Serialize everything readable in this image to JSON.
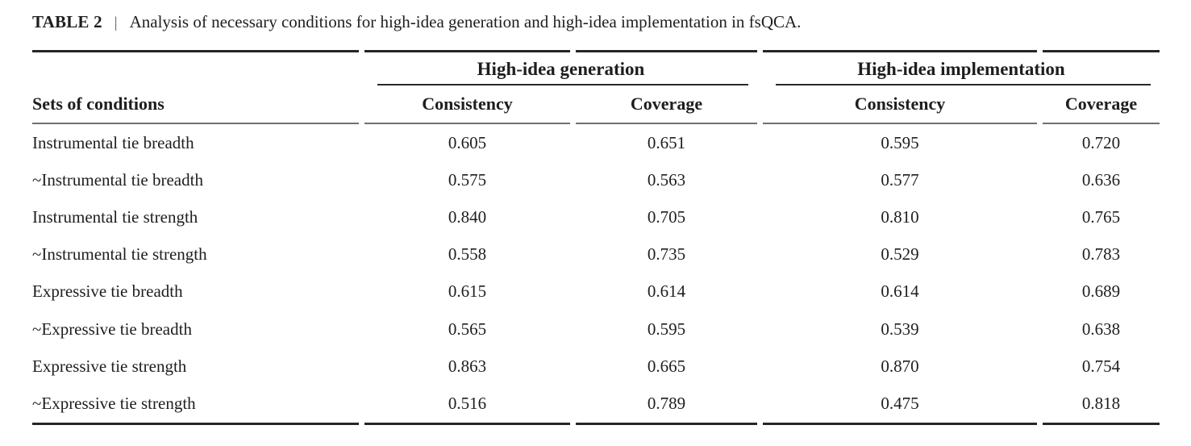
{
  "caption": {
    "label": "TABLE 2",
    "separator": "|",
    "text": "Analysis of necessary conditions for high-idea generation and high-idea implementation in fsQCA."
  },
  "table": {
    "row_header": "Sets of conditions",
    "col_groups": [
      {
        "label": "High-idea generation",
        "columns": [
          "Consistency",
          "Coverage"
        ]
      },
      {
        "label": "High-idea implementation",
        "columns": [
          "Consistency",
          "Coverage"
        ]
      }
    ],
    "rows": [
      {
        "condition": "Instrumental tie breadth",
        "values": [
          "0.605",
          "0.651",
          "0.595",
          "0.720"
        ]
      },
      {
        "condition": "~Instrumental tie breadth",
        "values": [
          "0.575",
          "0.563",
          "0.577",
          "0.636"
        ]
      },
      {
        "condition": "Instrumental tie strength",
        "values": [
          "0.840",
          "0.705",
          "0.810",
          "0.765"
        ]
      },
      {
        "condition": "~Instrumental tie strength",
        "values": [
          "0.558",
          "0.735",
          "0.529",
          "0.783"
        ]
      },
      {
        "condition": "Expressive tie breadth",
        "values": [
          "0.615",
          "0.614",
          "0.614",
          "0.689"
        ]
      },
      {
        "condition": "~Expressive tie breadth",
        "values": [
          "0.565",
          "0.595",
          "0.539",
          "0.638"
        ]
      },
      {
        "condition": "Expressive tie strength",
        "values": [
          "0.863",
          "0.665",
          "0.870",
          "0.754"
        ]
      },
      {
        "condition": "~Expressive tie strength",
        "values": [
          "0.516",
          "0.789",
          "0.475",
          "0.818"
        ]
      }
    ],
    "colors": {
      "rule_dark": "#262626",
      "rule_gray": "#6f6f6f",
      "text": "#1e1e1e"
    }
  }
}
